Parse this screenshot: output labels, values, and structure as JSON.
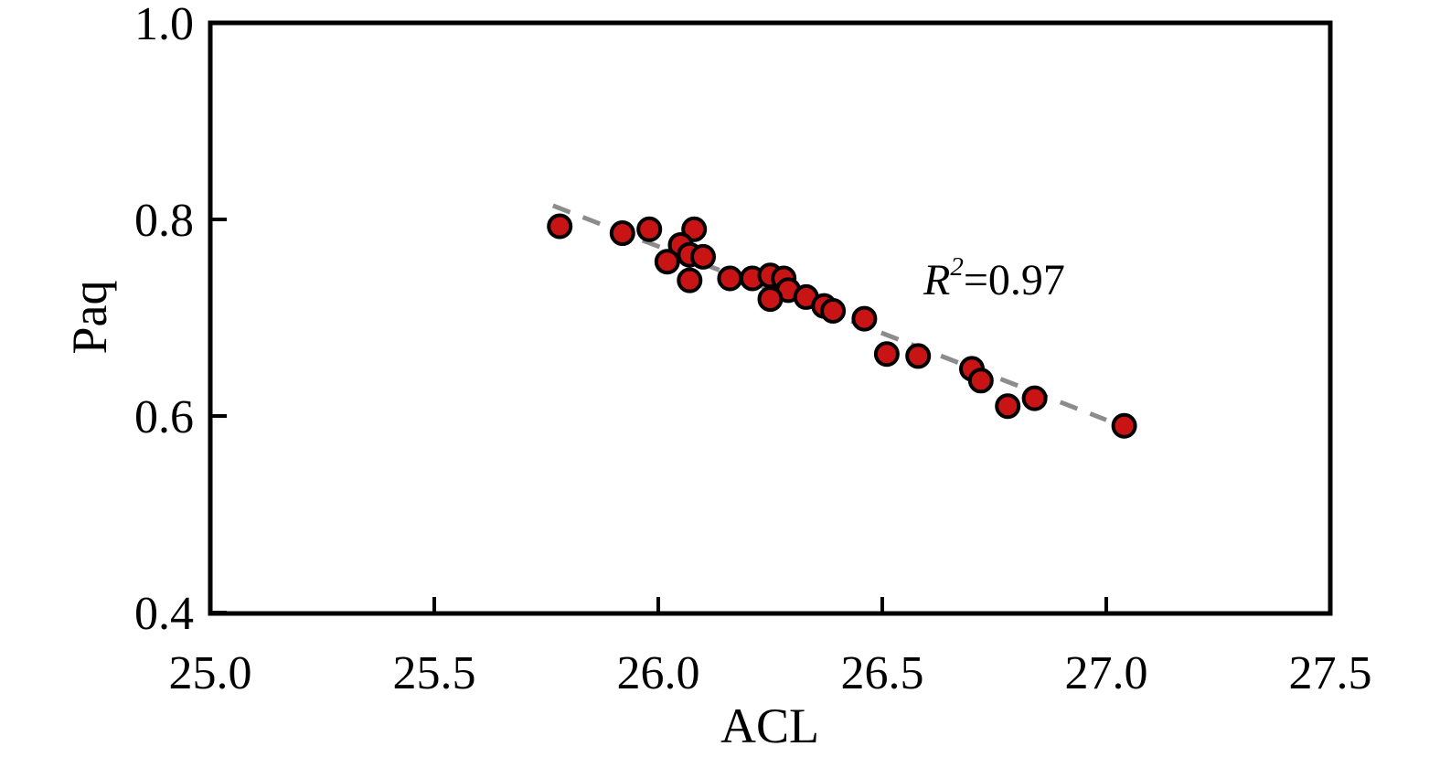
{
  "figure": {
    "background": "#ffffff"
  },
  "chart_data": {
    "type": "scatter",
    "title": "",
    "xlabel": "ACL",
    "ylabel": "Paq",
    "xlim": [
      25.0,
      27.5
    ],
    "ylim": [
      0.4,
      1.0
    ],
    "xtick_labels": [
      "25.0",
      "25.5",
      "26.0",
      "26.5",
      "27.0",
      "27.5"
    ],
    "ytick_labels": [
      "0.4",
      "0.6",
      "0.8",
      "1.0"
    ],
    "grid": false,
    "legend": null,
    "points": [
      [
        25.78,
        0.793
      ],
      [
        25.92,
        0.786
      ],
      [
        25.98,
        0.79
      ],
      [
        26.08,
        0.79
      ],
      [
        26.05,
        0.774
      ],
      [
        26.07,
        0.764
      ],
      [
        26.1,
        0.762
      ],
      [
        26.02,
        0.757
      ],
      [
        26.07,
        0.738
      ],
      [
        26.16,
        0.74
      ],
      [
        26.21,
        0.74
      ],
      [
        26.25,
        0.743
      ],
      [
        26.28,
        0.74
      ],
      [
        26.29,
        0.728
      ],
      [
        26.25,
        0.719
      ],
      [
        26.33,
        0.721
      ],
      [
        26.37,
        0.712
      ],
      [
        26.39,
        0.707
      ],
      [
        26.46,
        0.699
      ],
      [
        26.51,
        0.663
      ],
      [
        26.58,
        0.661
      ],
      [
        26.7,
        0.648
      ],
      [
        26.72,
        0.636
      ],
      [
        26.78,
        0.61
      ],
      [
        26.84,
        0.618
      ],
      [
        27.04,
        0.59
      ]
    ],
    "trendline": {
      "style": "dashed",
      "x1": 25.765,
      "y1": 0.814,
      "x2": 27.0,
      "y2": 0.596,
      "color": "#8c8c8c",
      "width": 5,
      "dash": [
        20,
        15
      ]
    },
    "marker": {
      "shape": "circle",
      "fill": "#c81414",
      "edge": "#000000",
      "radius": 12,
      "edge_width": 4
    },
    "axis": {
      "color": "#000000",
      "line_width": 5,
      "tick_length": 18,
      "tick_width": 4,
      "tick_direction": "in"
    },
    "annotation": {
      "base": "R",
      "sup": "2",
      "rest": "=0.97"
    }
  }
}
